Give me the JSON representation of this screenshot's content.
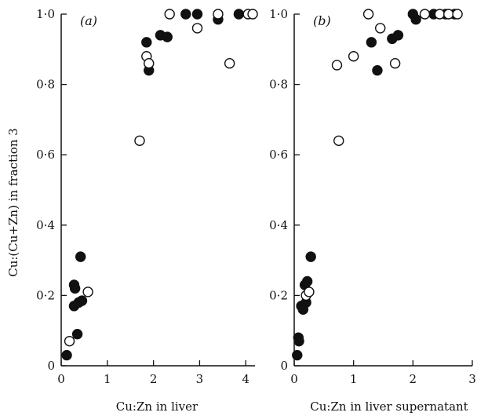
{
  "chart_data": [
    {
      "type": "scatter",
      "panel_label": "(a)",
      "xlabel": "Cu:Zn in liver",
      "ylabel": "Cu:(Cu+Zn) in fraction 3",
      "xlim": [
        0,
        4.2
      ],
      "ylim": [
        0,
        1.0
      ],
      "x_ticks": [
        0,
        1,
        2,
        3,
        4
      ],
      "x_tick_labels": [
        "0",
        "1",
        "2",
        "3",
        "4"
      ],
      "y_ticks": [
        0,
        0.2,
        0.4,
        0.6,
        0.8,
        1.0
      ],
      "y_tick_labels": [
        "0",
        "0·2",
        "0·4",
        "0·6",
        "0·8",
        "1·0"
      ],
      "series": [
        {
          "marker": "filled-circle",
          "x": [
            0.12,
            0.28,
            0.28,
            0.3,
            0.35,
            0.38,
            0.42,
            0.45,
            1.85,
            1.9,
            2.15,
            2.3,
            2.7,
            2.95,
            3.4,
            3.85
          ],
          "y": [
            0.03,
            0.17,
            0.23,
            0.22,
            0.09,
            0.18,
            0.31,
            0.185,
            0.92,
            0.84,
            0.94,
            0.935,
            1.0,
            1.0,
            0.985,
            1.0
          ]
        },
        {
          "marker": "open-circle",
          "x": [
            0.18,
            0.58,
            1.7,
            1.85,
            1.9,
            2.35,
            2.95,
            3.4,
            3.65,
            4.05,
            4.15
          ],
          "y": [
            0.07,
            0.21,
            0.64,
            0.88,
            0.86,
            1.0,
            0.96,
            1.0,
            0.86,
            1.0,
            1.0
          ]
        }
      ]
    },
    {
      "type": "scatter",
      "panel_label": "(b)",
      "xlabel": "Cu:Zn in liver supernatant",
      "ylabel": "",
      "xlim": [
        0,
        3.0
      ],
      "ylim": [
        0,
        1.0
      ],
      "x_ticks": [
        0,
        1,
        2,
        3
      ],
      "x_tick_labels": [
        "0",
        "1",
        "2",
        "3"
      ],
      "y_ticks": [
        0,
        0.2,
        0.4,
        0.6,
        0.8,
        1.0
      ],
      "y_tick_labels": [
        "0",
        "0·2",
        "0·4",
        "0·6",
        "0·8",
        "1·0"
      ],
      "series": [
        {
          "marker": "filled-circle",
          "x": [
            0.05,
            0.07,
            0.08,
            0.12,
            0.15,
            0.18,
            0.2,
            0.22,
            0.28,
            1.3,
            1.4,
            1.65,
            1.75,
            2.0,
            2.05,
            2.35,
            2.55,
            2.7
          ],
          "y": [
            0.03,
            0.08,
            0.07,
            0.17,
            0.16,
            0.23,
            0.18,
            0.24,
            0.31,
            0.92,
            0.84,
            0.93,
            0.94,
            1.0,
            0.985,
            1.0,
            1.0,
            1.0
          ]
        },
        {
          "marker": "open-circle",
          "x": [
            0.2,
            0.25,
            0.75,
            0.72,
            1.0,
            1.25,
            1.45,
            1.7,
            2.2,
            2.45,
            2.6,
            2.75
          ],
          "y": [
            0.2,
            0.21,
            0.64,
            0.855,
            0.88,
            1.0,
            0.96,
            0.86,
            1.0,
            1.0,
            1.0,
            1.0
          ]
        }
      ]
    }
  ]
}
